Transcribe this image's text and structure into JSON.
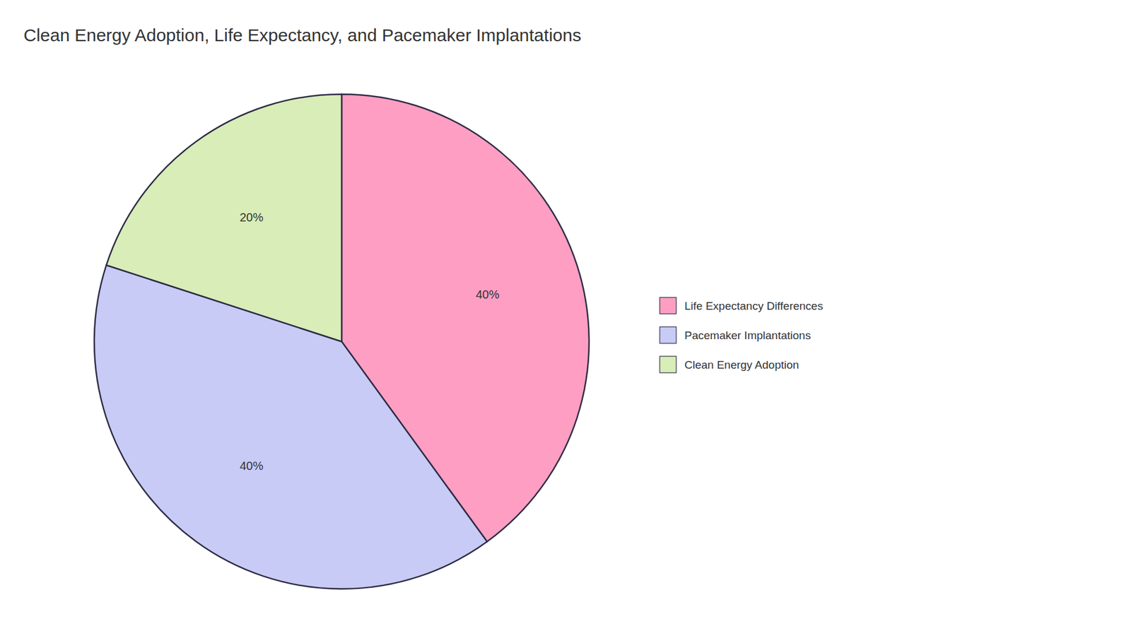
{
  "chart_data": {
    "type": "pie",
    "title": "Clean Energy Adoption, Life Expectancy, and Pacemaker Implantations",
    "categories": [
      "Life Expectancy Differences",
      "Pacemaker Implantations",
      "Clean Energy Adoption"
    ],
    "values": [
      40,
      40,
      20
    ],
    "value_labels": [
      "40%",
      "40%",
      "20%"
    ],
    "colors": [
      "#FF9EC3",
      "#C8CBF5",
      "#D8EDB8"
    ],
    "data_labels": true,
    "legend": "right"
  }
}
